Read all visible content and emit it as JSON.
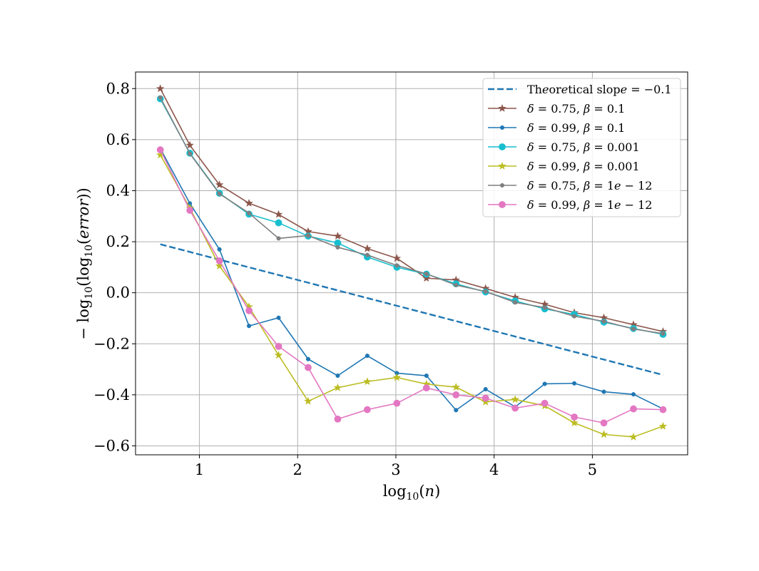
{
  "chart_data": {
    "type": "line",
    "title": "",
    "xlabel": "log10(n)",
    "ylabel": "−log10(log10(error))",
    "xlim": [
      0.35,
      5.97
    ],
    "ylim": [
      -0.635,
      0.865
    ],
    "xticks": [
      1,
      2,
      3,
      4,
      5
    ],
    "xtick_labels": [
      "1",
      "2",
      "3",
      "4",
      "5"
    ],
    "yticks": [
      -0.6,
      -0.4,
      -0.2,
      0.0,
      0.2,
      0.4,
      0.6,
      0.8
    ],
    "ytick_labels": [
      "−0.6",
      "−0.4",
      "−0.2",
      "0.0",
      "0.2",
      "0.4",
      "0.6",
      "0.8"
    ],
    "grid": true,
    "legend_position": "top-right",
    "x": [
      0.602,
      0.903,
      1.204,
      1.505,
      1.806,
      2.107,
      2.408,
      2.709,
      3.01,
      3.311,
      3.612,
      3.913,
      4.214,
      4.515,
      4.816,
      5.117,
      5.418,
      5.719
    ],
    "series": [
      {
        "name": "Theoretical slope = −0.1",
        "label": "Theoretical slope = −0.1",
        "color": "#1f77b4",
        "style": "dashed",
        "marker": "none",
        "x": [
          0.602,
          5.719
        ],
        "values": [
          0.19,
          -0.322
        ]
      },
      {
        "name": "δ = 0.75, β = 0.1",
        "label": "δ = 0.75,  β = 0.1",
        "color": "#8c564b",
        "style": "solid",
        "marker": "star",
        "values": [
          0.8,
          0.578,
          0.423,
          0.351,
          0.307,
          0.24,
          0.222,
          0.173,
          0.135,
          0.057,
          0.05,
          0.017,
          -0.018,
          -0.045,
          -0.078,
          -0.098,
          -0.125,
          -0.152
        ]
      },
      {
        "name": "δ = 0.99, β = 0.1",
        "label": "δ = 0.99,  β = 0.1",
        "color": "#1f77b4",
        "style": "solid",
        "marker": "point",
        "values": [
          0.565,
          0.35,
          0.17,
          -0.13,
          -0.098,
          -0.26,
          -0.325,
          -0.247,
          -0.315,
          -0.325,
          -0.46,
          -0.378,
          -0.447,
          -0.357,
          -0.355,
          -0.388,
          -0.398,
          -0.455
        ]
      },
      {
        "name": "δ = 0.75, β = 0.001",
        "label": "δ = 0.75,  β = 0.001",
        "color": "#17becf",
        "style": "solid",
        "marker": "circle",
        "values": [
          0.76,
          0.547,
          0.39,
          0.308,
          0.274,
          0.222,
          0.195,
          0.14,
          0.1,
          0.073,
          0.035,
          0.003,
          -0.032,
          -0.063,
          -0.085,
          -0.115,
          -0.14,
          -0.163
        ]
      },
      {
        "name": "δ = 0.99, β = 0.001",
        "label": "δ = 0.99,  β = 0.001",
        "color": "#bcbd22",
        "style": "solid",
        "marker": "star",
        "values": [
          0.54,
          0.332,
          0.105,
          -0.055,
          -0.245,
          -0.425,
          -0.372,
          -0.348,
          -0.332,
          -0.358,
          -0.37,
          -0.428,
          -0.418,
          -0.443,
          -0.51,
          -0.555,
          -0.565,
          -0.523
        ]
      },
      {
        "name": "δ = 0.75, β = 1e−12",
        "label": "δ = 0.75,  β = 1e − 12",
        "color": "#7f7f7f",
        "style": "solid",
        "marker": "point",
        "values": [
          0.765,
          0.545,
          0.388,
          0.312,
          0.213,
          0.224,
          0.178,
          0.148,
          0.107,
          0.074,
          0.03,
          0.005,
          -0.038,
          -0.058,
          -0.092,
          -0.112,
          -0.142,
          -0.16
        ]
      },
      {
        "name": "δ = 0.99, β = 1e−12",
        "label": "δ = 0.99,  β = 1e − 12",
        "color": "#e377c2",
        "style": "solid",
        "marker": "circle",
        "values": [
          0.56,
          0.323,
          0.125,
          -0.07,
          -0.21,
          -0.293,
          -0.495,
          -0.458,
          -0.433,
          -0.373,
          -0.4,
          -0.413,
          -0.452,
          -0.433,
          -0.487,
          -0.51,
          -0.455,
          -0.458
        ]
      }
    ]
  }
}
